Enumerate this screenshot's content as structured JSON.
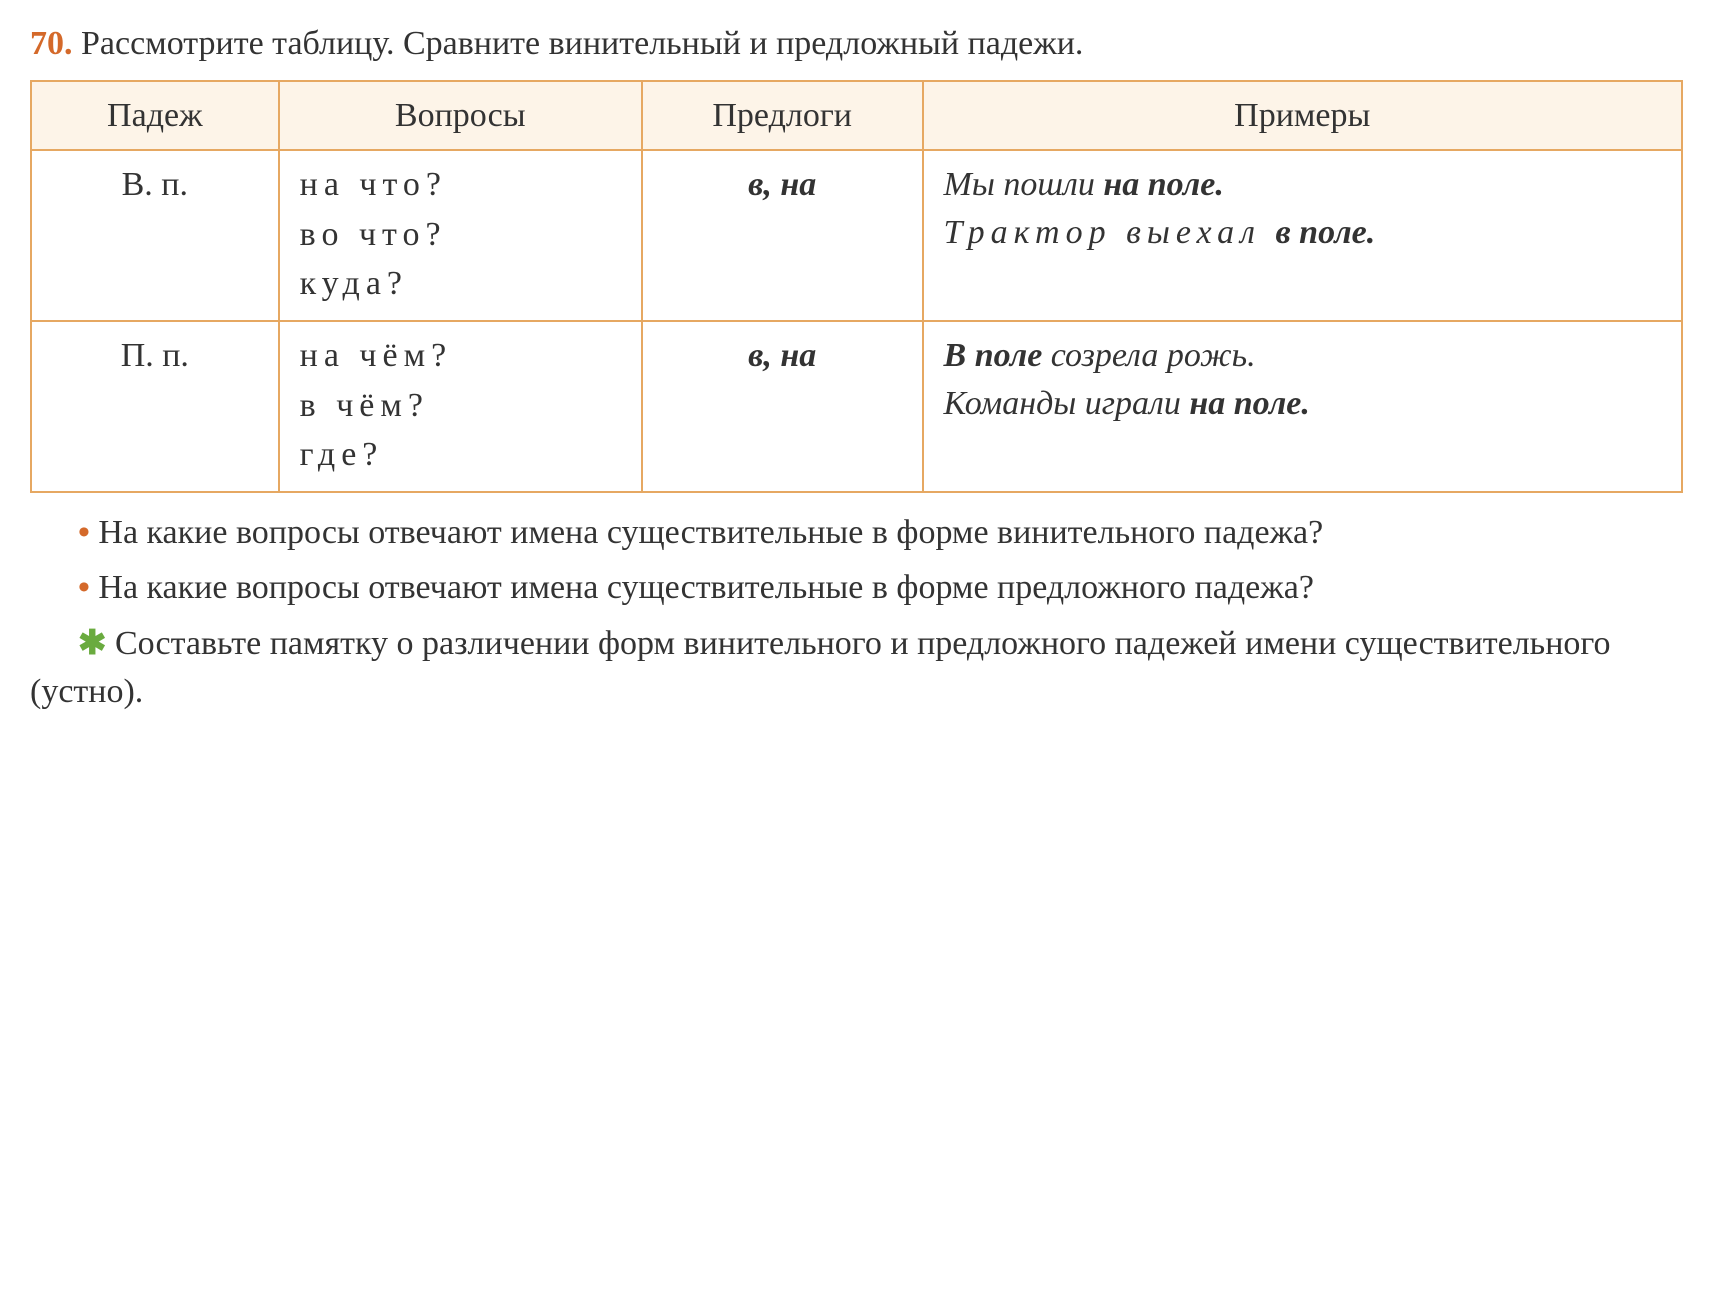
{
  "exercise": {
    "number": "70.",
    "instruction": "Рассмотрите таблицу. Сравните винительный и предложный падежи."
  },
  "table": {
    "headers": {
      "case": "Падеж",
      "questions": "Вопросы",
      "prepositions": "Предлоги",
      "examples": "Примеры"
    },
    "rows": [
      {
        "case": "В. п.",
        "questions": [
          "на что?",
          "во что?",
          "куда?"
        ],
        "prepositions": "в, на",
        "example1_pre": "Мы пошли ",
        "example1_bold": "на поле.",
        "example2_pre": "Трактор выехал ",
        "example2_bold": "в поле."
      },
      {
        "case": "П. п.",
        "questions": [
          "на чём?",
          "в чём?",
          "где?"
        ],
        "prepositions": "в, на",
        "example1_bold": "В поле",
        "example1_post": " созрела рожь.",
        "example2_pre": "Команды играли ",
        "example2_bold": "на поле."
      }
    ]
  },
  "questions": {
    "q1": "На какие вопросы отвечают имена существительные в форме винительного падежа?",
    "q2": "На какие вопросы отвечают имена существительные в форме предложного падежа?",
    "q3": "Составьте памятку о различении форм винительного и предложного падежей имени существительного (устно)."
  },
  "bullets": {
    "orange": "•",
    "green": "✱"
  },
  "colors": {
    "exercise_number": "#d4692a",
    "table_border": "#e6a862",
    "header_bg": "#fdf4e8",
    "orange_bullet": "#d4692a",
    "green_asterisk": "#6aab3f",
    "text": "#333333"
  }
}
